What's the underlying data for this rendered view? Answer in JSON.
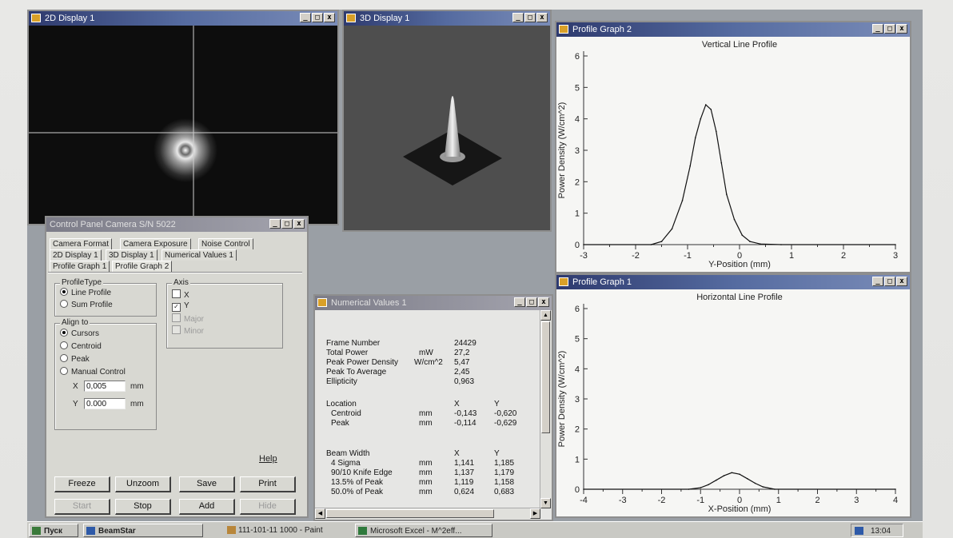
{
  "windows": {
    "display2d": {
      "title": "2D Display 1"
    },
    "display3d": {
      "title": "3D Display 1"
    },
    "profile2": {
      "title": "Profile Graph 2",
      "graph_title": "Vertical Line Profile",
      "xlabel": "Y-Position (mm)",
      "ylabel": "Power Density (W/cm^2)"
    },
    "profile1": {
      "title": "Profile Graph 1",
      "graph_title": "Horizontal Line Profile",
      "xlabel": "X-Position (mm)",
      "ylabel": "Power Density (W/cm^2)"
    },
    "control_panel": {
      "title": "Control Panel Camera S/N 5022",
      "tabs_row1": [
        "Camera Format",
        "Camera Exposure",
        "Noise Control"
      ],
      "tabs_row2": [
        "2D Display 1",
        "3D Display 1",
        "Numerical Values 1"
      ],
      "tabs_row3": [
        "Profile Graph 1",
        "Profile Graph 2"
      ],
      "profile_type": {
        "label": "ProfileType",
        "options": [
          "Line Profile",
          "Sum Profile"
        ],
        "selected": "Line Profile"
      },
      "axis": {
        "label": "Axis",
        "options": [
          "X",
          "Y",
          "Major",
          "Minor"
        ],
        "checked": [
          "Y"
        ],
        "disabled": [
          "Major",
          "Minor"
        ]
      },
      "align_to": {
        "label": "Align to",
        "options": [
          "Cursors",
          "Centroid",
          "Peak",
          "Manual Control"
        ],
        "selected": "Cursors",
        "x_label": "X",
        "x_value": "0,005",
        "y_label": "Y",
        "y_value": "0.000",
        "unit": "mm"
      },
      "help_link": "Help",
      "buttons_row1": [
        "Freeze",
        "Unzoom",
        "Save",
        "Print"
      ],
      "buttons_row2": [
        "Start",
        "Stop",
        "Add",
        "Hide"
      ]
    },
    "numerical": {
      "title": "Numerical Values 1",
      "rows": [
        {
          "label": "Frame Number",
          "unit": "",
          "x": "24429",
          "y": ""
        },
        {
          "label": "Total Power",
          "unit": "mW",
          "x": "27,2",
          "y": ""
        },
        {
          "label": "Peak Power Density",
          "unit": "W/cm^2",
          "x": "5,47",
          "y": ""
        },
        {
          "label": "Peak To Average",
          "unit": "",
          "x": "2,45",
          "y": ""
        },
        {
          "label": "Ellipticity",
          "unit": "",
          "x": "0,963",
          "y": ""
        }
      ],
      "location": {
        "header": "Location",
        "col_x": "X",
        "col_y": "Y",
        "rows": [
          {
            "label": "Centroid",
            "unit": "mm",
            "x": "-0,143",
            "y": "-0,620"
          },
          {
            "label": "Peak",
            "unit": "mm",
            "x": "-0,114",
            "y": "-0,629"
          }
        ]
      },
      "beam_width": {
        "header": "Beam Width",
        "col_x": "X",
        "col_y": "Y",
        "rows": [
          {
            "label": "4 Sigma",
            "unit": "mm",
            "x": "1,141",
            "y": "1,185"
          },
          {
            "label": "90/10 Knife Edge",
            "unit": "mm",
            "x": "1,137",
            "y": "1,179"
          },
          {
            "label": "13.5% of Peak",
            "unit": "mm",
            "x": "1,119",
            "y": "1,158"
          },
          {
            "label": "50.0% of Peak",
            "unit": "mm",
            "x": "0,624",
            "y": "0,683"
          }
        ]
      }
    }
  },
  "taskbar": {
    "start": "Пуск",
    "items": [
      "BeamStar",
      "111-101-11 1000 - Paint",
      "Microsoft Excel - M^2eff..."
    ],
    "clock": "13:04"
  },
  "chart_data": [
    {
      "type": "line",
      "title": "Vertical Line Profile",
      "xlabel": "Y-Position (mm)",
      "ylabel": "Power Density (W/cm^2)",
      "xlim": [
        -3,
        3
      ],
      "ylim": [
        0,
        6
      ],
      "xticks": [
        -3,
        -2,
        -1,
        0,
        1,
        2,
        3
      ],
      "yticks": [
        0,
        1,
        2,
        3,
        4,
        5,
        6
      ],
      "series": [
        {
          "x": [
            -3,
            -1.7,
            -1.5,
            -1.3,
            -1.1,
            -0.95,
            -0.85,
            -0.75,
            -0.65,
            -0.55,
            -0.45,
            -0.35,
            -0.25,
            -0.1,
            0.05,
            0.2,
            0.4,
            0.8,
            3
          ],
          "y": [
            0,
            0,
            0.1,
            0.5,
            1.4,
            2.5,
            3.4,
            4.0,
            4.45,
            4.3,
            3.6,
            2.6,
            1.6,
            0.8,
            0.3,
            0.1,
            0.02,
            0,
            0
          ]
        }
      ]
    },
    {
      "type": "line",
      "title": "Horizontal Line Profile",
      "xlabel": "X-Position (mm)",
      "ylabel": "Power Density (W/cm^2)",
      "xlim": [
        -4,
        4
      ],
      "ylim": [
        0,
        6
      ],
      "xticks": [
        -4,
        -3,
        -2,
        -1,
        0,
        1,
        2,
        3,
        4
      ],
      "yticks": [
        0,
        1,
        2,
        3,
        4,
        5,
        6
      ],
      "series": [
        {
          "x": [
            -4,
            -1.3,
            -1.0,
            -0.8,
            -0.6,
            -0.4,
            -0.2,
            0,
            0.2,
            0.4,
            0.6,
            0.9,
            4
          ],
          "y": [
            0,
            0,
            0.05,
            0.15,
            0.3,
            0.45,
            0.55,
            0.5,
            0.35,
            0.2,
            0.08,
            0,
            0
          ]
        }
      ]
    }
  ]
}
